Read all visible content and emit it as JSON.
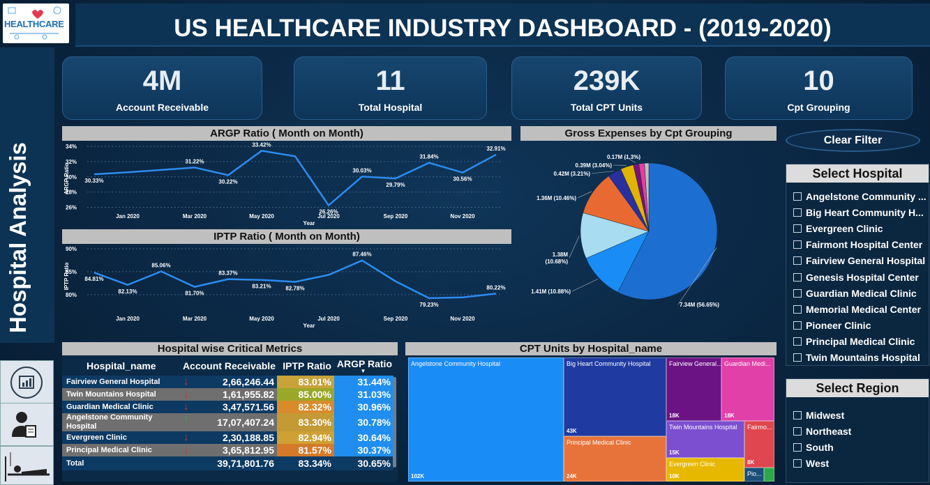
{
  "header": {
    "logo_text": "HEALTHCARE",
    "title": "US HEALTHCARE INDUSTRY DASHBOARD - (2019-2020)"
  },
  "sidebar": {
    "title": "Hospital Analysis",
    "nav_icons": [
      "dashboard-icon",
      "doctor-icon",
      "patient-bed-icon"
    ]
  },
  "kpis": [
    {
      "value": "4M",
      "label": "Account Receivable"
    },
    {
      "value": "11",
      "label": "Total Hospital"
    },
    {
      "value": "239K",
      "label": "Total CPT Units"
    },
    {
      "value": "10",
      "label": "Cpt Grouping"
    }
  ],
  "chart_data": [
    {
      "type": "line",
      "title": "ARGP Ratio ( Month on Month)",
      "xlabel": "Year",
      "ylabel": "ARGP Ratio",
      "x_ticks": [
        "Jan 2020",
        "Mar 2020",
        "May 2020",
        "Jul 2020",
        "Sep 2020",
        "Nov 2020"
      ],
      "y_ticks": [
        "34%",
        "32%",
        "30%",
        "28%",
        "26%"
      ],
      "ylim": [
        25.5,
        34
      ],
      "values": [
        30.33,
        30.6,
        30.9,
        31.22,
        30.22,
        33.42,
        32.7,
        26.26,
        30.03,
        29.79,
        31.84,
        30.56,
        32.91
      ],
      "data_labels": [
        "30.33%",
        "",
        "",
        "31.22%",
        "30.22%",
        "33.42%",
        "",
        "26.26%",
        "30.03%",
        "29.79%",
        "31.84%",
        "30.56%",
        "32.91%"
      ],
      "color": "#2b8cf0"
    },
    {
      "type": "line",
      "title": "IPTP Ratio ( Month on Month)",
      "xlabel": "Year",
      "ylabel": "IPTP Ratio",
      "x_ticks": [
        "Jan 2020",
        "Mar 2020",
        "May 2020",
        "Jul 2020",
        "Sep 2020",
        "Nov 2020"
      ],
      "y_ticks": [
        "90%",
        "85%",
        "80%"
      ],
      "ylim": [
        78,
        90
      ],
      "values": [
        84.81,
        82.13,
        85.06,
        81.7,
        83.37,
        83.21,
        82.78,
        84.3,
        87.46,
        82.9,
        79.23,
        79.4,
        80.22
      ],
      "data_labels": [
        "84.81%",
        "82.13%",
        "85.06%",
        "81.70%",
        "83.37%",
        "83.21%",
        "82.78%",
        "",
        "87.46%",
        "",
        "79.23%",
        "",
        "80.22%"
      ],
      "color": "#2b8cf0"
    },
    {
      "type": "pie",
      "title": "Gross Expenses by Cpt Grouping",
      "slices": [
        {
          "value": 56.65,
          "label": "7.34M (56.65%)",
          "color": "#1c6fd1"
        },
        {
          "value": 10.88,
          "label": "1.41M (10.88%)",
          "color": "#1a8cf5"
        },
        {
          "value": 10.68,
          "label": "1.38M (10.68%)",
          "color": "#a8dcf0"
        },
        {
          "value": 10.46,
          "label": "1.36M (10.46%)",
          "color": "#e86a32"
        },
        {
          "value": 3.21,
          "label": "0.42M (3.21%)",
          "color": "#2a2f9e"
        },
        {
          "value": 3.04,
          "label": "0.39M (3.04%)",
          "color": "#e0b400"
        },
        {
          "value": 1.3,
          "label": "0.17M (1.3%)",
          "color": "#7a1470"
        },
        {
          "value": 1.3,
          "label": "",
          "color": "#e23fa0"
        },
        {
          "value": 1.0,
          "label": "",
          "color": "#c0c0c0"
        }
      ]
    },
    {
      "type": "table",
      "title": "Hospital wise Critical Metrics",
      "columns": [
        "Hospital_name",
        "Account Receivable",
        "IPTP Ratio",
        "ARGP Ratio"
      ],
      "rows": [
        {
          "name": "Fairview General Hospital",
          "trend": "down",
          "ar": "2,66,246.44",
          "iptp": "83.01%",
          "argp": "31.44%"
        },
        {
          "name": "Twin Mountains Hospital",
          "trend": "down",
          "ar": "1,61,955.82",
          "iptp": "85.00%",
          "argp": "31.03%"
        },
        {
          "name": "Guardian Medical Clinic",
          "trend": "down",
          "ar": "3,47,571.56",
          "iptp": "82.32%",
          "argp": "30.96%"
        },
        {
          "name": "Angelstone Community Hospital",
          "trend": "up",
          "ar": "17,07,407.24",
          "iptp": "83.30%",
          "argp": "30.78%"
        },
        {
          "name": "Evergreen Clinic",
          "trend": "down",
          "ar": "2,30,188.85",
          "iptp": "82.94%",
          "argp": "30.64%"
        },
        {
          "name": "Principal Medical Clinic",
          "trend": "down",
          "ar": "3,65,812.95",
          "iptp": "81.57%",
          "argp": "30.37%"
        }
      ],
      "total": {
        "name": "Total",
        "ar": "39,71,801.76",
        "iptp": "83.34%",
        "argp": "30.65%"
      }
    },
    {
      "type": "treemap",
      "title": "CPT Units by Hospital_name",
      "cells": [
        {
          "name": "Angelstone Community Hospital",
          "value": "102K",
          "color": "#1a8cf5"
        },
        {
          "name": "Big Heart Community Hospital",
          "value": "43K",
          "color": "#1f3aa0"
        },
        {
          "name": "Principal Medical Clinic",
          "value": "24K",
          "color": "#e8733a"
        },
        {
          "name": "Fairview General...",
          "value": "18K",
          "color": "#6b1385"
        },
        {
          "name": "Guardian Medi...",
          "value": "18K",
          "color": "#e040a8"
        },
        {
          "name": "Twin Mountains Hospital",
          "value": "15K",
          "color": "#7b4fd0"
        },
        {
          "name": "Fairmo...",
          "value": "8K",
          "color": "#e0464f"
        },
        {
          "name": "Evergreen Clinic",
          "value": "10K",
          "color": "#e6b800"
        },
        {
          "name": "Pio...",
          "value": "",
          "color": "#1a4f7a"
        },
        {
          "name": "",
          "value": "",
          "color": "#2ca84a"
        }
      ]
    }
  ],
  "clear_filter": "Clear Filter",
  "hospital_slicer": {
    "title": "Select Hospital",
    "items": [
      "Angelstone Community ...",
      "Big Heart Community H...",
      "Evergreen Clinic",
      "Fairmont Hospital Center",
      "Fairview General Hospital",
      "Genesis Hospital Center",
      "Guardian Medical Clinic",
      "Memorial Medical Center",
      "Pioneer Clinic",
      "Principal Medical Clinic",
      "Twin Mountains Hospital"
    ]
  },
  "region_slicer": {
    "title": "Select Region",
    "items": [
      "Midwest",
      "Northeast",
      "South",
      "West"
    ]
  }
}
